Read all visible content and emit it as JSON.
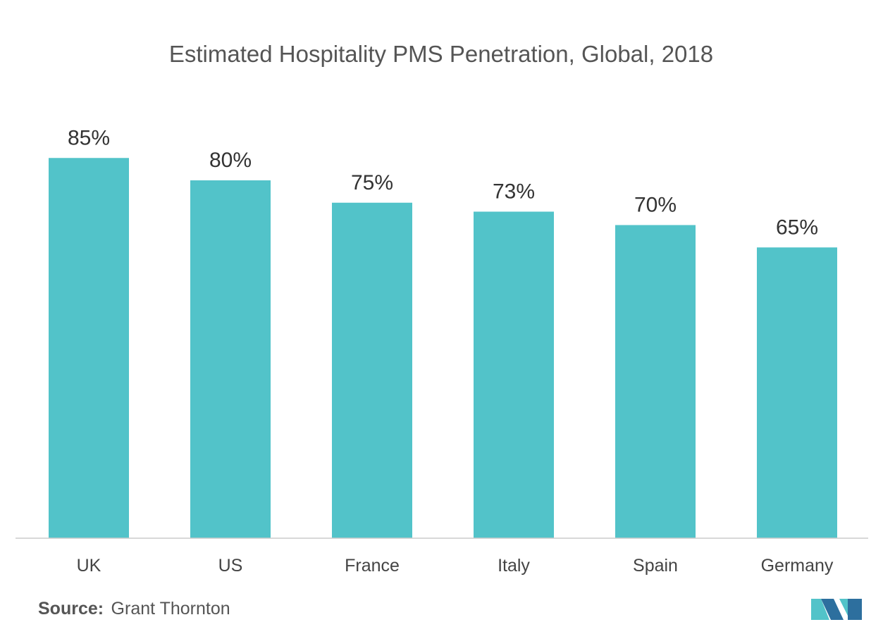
{
  "chart_data": {
    "type": "bar",
    "title": "Estimated Hospitality PMS Penetration, Global, 2018",
    "categories": [
      "UK",
      "US",
      "France",
      "Italy",
      "Spain",
      "Germany"
    ],
    "values": [
      85,
      80,
      75,
      73,
      70,
      65
    ],
    "value_labels": [
      "85%",
      "80%",
      "75%",
      "73%",
      "70%",
      "65%"
    ],
    "xlabel": "",
    "ylabel": "",
    "ylim": [
      0,
      100
    ],
    "grid": false,
    "bar_color": "#52c3c9"
  },
  "source": {
    "prefix": "Source:",
    "text": "Grant Thornton"
  },
  "colors": {
    "axis": "#cccccc",
    "logo_dark": "#2d6f9e",
    "logo_light": "#52c3c9"
  }
}
